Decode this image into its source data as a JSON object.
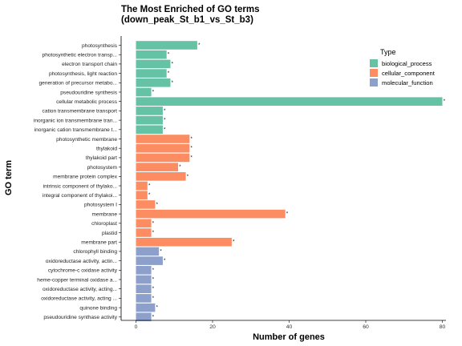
{
  "chart_data": {
    "type": "bar",
    "orientation": "horizontal",
    "title_line1": "The Most Enriched of GO terms",
    "title_line2": "(down_peak_St_b1_vs_St_b3)",
    "xlabel": "Number of genes",
    "ylabel": "GO term",
    "xlim": [
      0,
      82
    ],
    "xticks": [
      0,
      20,
      40,
      60,
      80
    ],
    "grid": false,
    "legend": {
      "title": "Type",
      "position": "top-right",
      "entries": [
        {
          "label": "biological_process",
          "color": "#66c2a5"
        },
        {
          "label": "cellular_component",
          "color": "#fc8d62"
        },
        {
          "label": "molecular_function",
          "color": "#8da0cb"
        }
      ]
    },
    "annotation_marker": "*",
    "categories": [
      "photosynthesis",
      "photosynthetic electron transp...",
      "electron transport chain",
      "photosynthesis, light reaction",
      "generation of precursor metabo...",
      "pseudouridine synthesis",
      "cellular metabolic process",
      "cation transmembrane transport",
      "inorganic ion transmembrane tran...",
      "inorganic cation transmembrane t...",
      "photosynthetic membrane",
      "thylakoid",
      "thylakoid part",
      "photosystem",
      "membrane protein complex",
      "intrinsic component of thylako...",
      "integral component of thylakoi...",
      "photosystem I",
      "membrane",
      "chloroplast",
      "plastid",
      "membrane part",
      "chlorophyll binding",
      "oxidoreductase activity, actin...",
      "cytochrome-c oxidase activity",
      "heme-copper terminal oxidase a...",
      "oxidoreductase activity, acting...",
      "oxidoreductase activity, acting ...",
      "quinone binding",
      "pseudouridine synthase activity"
    ],
    "values": [
      16,
      8,
      9,
      8,
      9,
      4,
      80,
      7,
      7,
      7,
      14,
      14,
      14,
      11,
      13,
      3,
      3,
      5,
      39,
      4,
      4,
      25,
      6,
      7,
      4,
      4,
      4,
      4,
      5,
      4
    ],
    "types": [
      "biological_process",
      "biological_process",
      "biological_process",
      "biological_process",
      "biological_process",
      "biological_process",
      "biological_process",
      "biological_process",
      "biological_process",
      "biological_process",
      "cellular_component",
      "cellular_component",
      "cellular_component",
      "cellular_component",
      "cellular_component",
      "cellular_component",
      "cellular_component",
      "cellular_component",
      "cellular_component",
      "cellular_component",
      "cellular_component",
      "cellular_component",
      "molecular_function",
      "molecular_function",
      "molecular_function",
      "molecular_function",
      "molecular_function",
      "molecular_function",
      "molecular_function",
      "molecular_function"
    ]
  }
}
